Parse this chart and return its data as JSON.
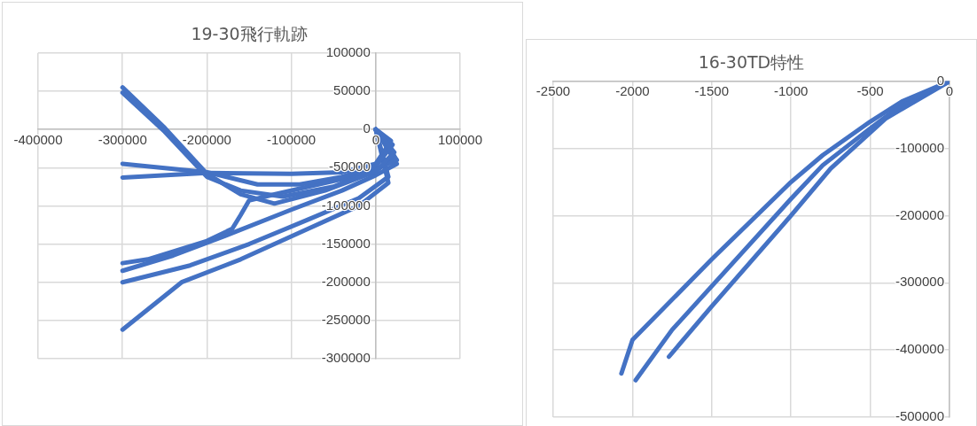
{
  "chart_data": [
    {
      "type": "line",
      "title": "19-30飛行軌跡",
      "xlim": [
        -400000,
        100000
      ],
      "xticks": [
        -400000,
        -300000,
        -200000,
        -100000,
        0,
        100000
      ],
      "ylim": [
        -300000,
        100000
      ],
      "yticks": [
        -300000,
        -250000,
        -200000,
        -150000,
        -100000,
        -50000,
        0,
        50000,
        100000
      ],
      "grid": true,
      "legend": false,
      "marker": "none",
      "line_style": "solid",
      "series": [
        {
          "color": "#4472c4",
          "x": [
            -300000,
            -250000,
            -200000,
            -160000,
            -120000,
            -60000,
            0,
            22000,
            0
          ],
          "values": [
            55000,
            2000,
            -58000,
            -85000,
            -97000,
            -80000,
            -55000,
            -30000,
            0
          ]
        },
        {
          "color": "#4472c4",
          "x": [
            -300000,
            -250000,
            -200000,
            -160000,
            -110000,
            -50000,
            0,
            25000,
            0
          ],
          "values": [
            48000,
            -3000,
            -62000,
            -80000,
            -88000,
            -75000,
            -52000,
            -40000,
            0
          ]
        },
        {
          "color": "#4472c4",
          "x": [
            -300000,
            -200000,
            -140000,
            -90000,
            -40000,
            0,
            20000,
            0
          ],
          "values": [
            -45000,
            -56000,
            -72000,
            -72000,
            -62000,
            -48000,
            -20000,
            0
          ]
        },
        {
          "color": "#4472c4",
          "x": [
            -300000,
            -200000,
            -100000,
            -40000,
            0,
            18000,
            0
          ],
          "values": [
            -63000,
            -57000,
            -58000,
            -56000,
            -45000,
            -15000,
            0
          ]
        },
        {
          "color": "#4472c4",
          "x": [
            -300000,
            -270000,
            -200000,
            -170000,
            -160000,
            -150000,
            -120000,
            -60000,
            0,
            22000,
            0
          ],
          "values": [
            -175000,
            -170000,
            -146000,
            -130000,
            -112000,
            -93000,
            -85000,
            -70000,
            -55000,
            -35000,
            0
          ]
        },
        {
          "color": "#4472c4",
          "x": [
            -300000,
            -240000,
            -180000,
            -100000,
            -40000,
            0,
            25000,
            0
          ],
          "values": [
            -185000,
            -165000,
            -140000,
            -105000,
            -80000,
            -60000,
            -45000,
            0
          ]
        },
        {
          "color": "#4472c4",
          "x": [
            -300000,
            -220000,
            -150000,
            -80000,
            -20000,
            15000,
            0
          ],
          "values": [
            -200000,
            -178000,
            -150000,
            -118000,
            -90000,
            -62000,
            0
          ]
        },
        {
          "color": "#4472c4",
          "x": [
            -300000,
            -230000,
            -160000,
            -80000,
            -20000,
            15000,
            0
          ],
          "values": [
            -262000,
            -200000,
            -170000,
            -130000,
            -100000,
            -70000,
            0
          ]
        }
      ]
    },
    {
      "type": "line",
      "title": "16-30TD特性",
      "xlim": [
        -2500,
        0
      ],
      "xticks": [
        -2500,
        -2000,
        -1500,
        -1000,
        -500,
        0
      ],
      "ylim": [
        -500000,
        0
      ],
      "yticks": [
        -500000,
        -400000,
        -300000,
        -200000,
        -100000,
        0
      ],
      "grid": true,
      "legend": false,
      "marker": "none",
      "line_style": "solid",
      "series": [
        {
          "color": "#4472c4",
          "x": [
            0,
            -300,
            -500,
            -800,
            -1000,
            -1500,
            -2000,
            -2070
          ],
          "values": [
            0,
            -30000,
            -60000,
            -110000,
            -150000,
            -265000,
            -385000,
            -435000
          ]
        },
        {
          "color": "#4472c4",
          "x": [
            0,
            -300,
            -500,
            -800,
            -1000,
            -1500,
            -1750,
            -1980
          ],
          "values": [
            0,
            -35000,
            -70000,
            -125000,
            -175000,
            -305000,
            -370000,
            -445000
          ]
        },
        {
          "color": "#4472c4",
          "x": [
            0,
            -400,
            -750,
            -1000,
            -1500,
            -1770
          ],
          "values": [
            0,
            -55000,
            -130000,
            -200000,
            -335000,
            -410000
          ]
        }
      ]
    }
  ]
}
